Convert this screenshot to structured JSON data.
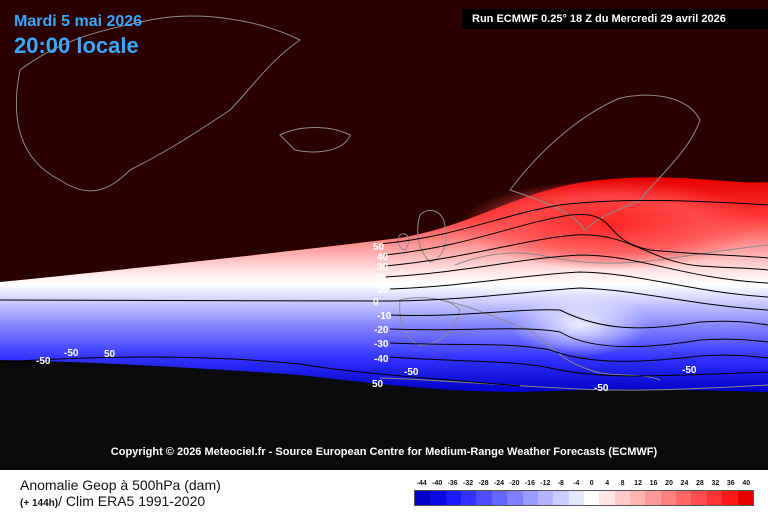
{
  "header": {
    "date": "Mardi 5 mai 2026",
    "time": "20:00 locale",
    "run": "Run ECMWF 0.25° 18 Z du Mercredi 29 avril 2026"
  },
  "copyright": "Copyright © 2026 Meteociel.fr - Source European Centre for Medium-Range Weather Forecasts (ECMWF)",
  "footer": {
    "param_line1": "Anomalie Geop à 500hPa (dam)",
    "param_line2_prefix": "(+ 144h)",
    "param_line2_suffix": "/ Clim ERA5 1991-2020"
  },
  "legend": {
    "ticks": [
      "-44",
      "-40",
      "-36",
      "-32",
      "-28",
      "-24",
      "-20",
      "-16",
      "-12",
      "-8",
      "-4",
      "0",
      "4",
      "8",
      "12",
      "16",
      "20",
      "24",
      "28",
      "32",
      "36",
      "40"
    ],
    "colors": [
      "#0000c8",
      "#0a0ae6",
      "#1a1aff",
      "#3333ff",
      "#4d4dff",
      "#6666ff",
      "#8080ff",
      "#9999ff",
      "#b3b3ff",
      "#ccccff",
      "#e6e6ff",
      "#ffffff",
      "#ffe6e6",
      "#ffcccc",
      "#ffb3b3",
      "#ff9999",
      "#ff8080",
      "#ff6666",
      "#ff4d4d",
      "#ff3333",
      "#ff1a1a",
      "#e60000"
    ]
  },
  "map": {
    "colors": {
      "land_north": "#2a0000",
      "land_south": "#0a0a0a",
      "coast": "#8c8c8c",
      "contour": "#000000"
    },
    "contour_labels": [
      "50",
      "40",
      "30",
      "20",
      "10",
      "0",
      "-10",
      "-20",
      "-30",
      "-40",
      "-50",
      "-50",
      "-50",
      "-50",
      "-50",
      "50",
      "50"
    ]
  }
}
